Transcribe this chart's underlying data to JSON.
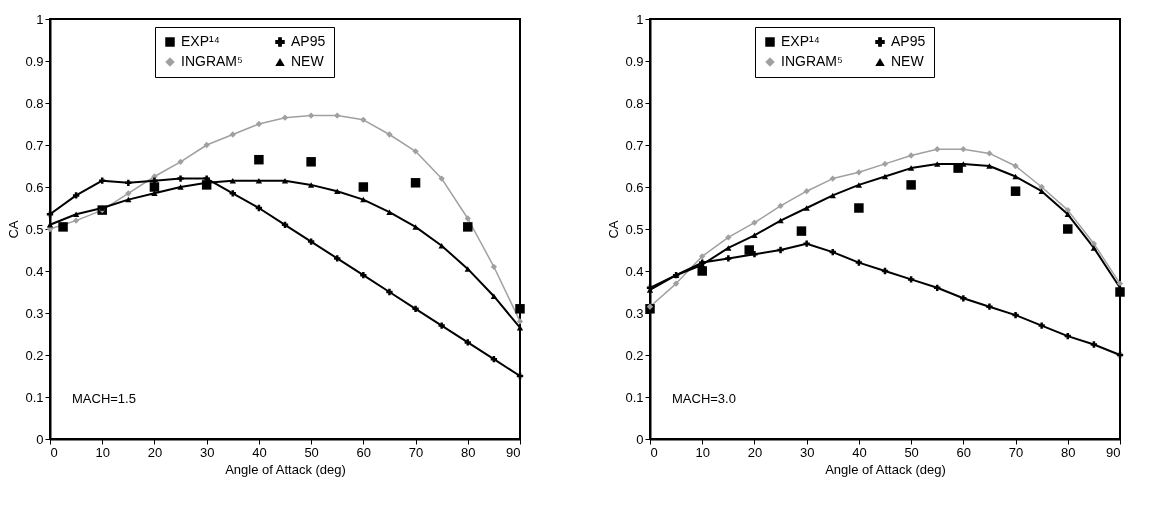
{
  "chart_data": [
    {
      "type": "line",
      "xlabel": "Angle of Attack (deg)",
      "ylabel": "CA",
      "annotations": [
        "MACH=1.5"
      ],
      "xlim": [
        0,
        90
      ],
      "ylim": [
        0,
        1
      ],
      "xticks": [
        0,
        10,
        20,
        30,
        40,
        50,
        60,
        70,
        80,
        90
      ],
      "yticks": [
        0,
        0.1,
        0.2,
        0.3,
        0.4,
        0.5,
        0.6,
        0.7,
        0.8,
        0.9,
        1
      ],
      "legend": "top",
      "x": [
        0,
        5,
        10,
        15,
        20,
        25,
        30,
        35,
        40,
        45,
        50,
        55,
        60,
        65,
        70,
        75,
        80,
        85,
        90
      ],
      "series": [
        {
          "name": "EXP¹⁴",
          "type": "scatter",
          "marker": "square",
          "color": "#000000",
          "x": [
            2.5,
            10,
            20,
            30,
            40,
            50,
            60,
            70,
            80,
            90
          ],
          "values": [
            0.505,
            0.545,
            0.6,
            0.605,
            0.665,
            0.66,
            0.6,
            0.61,
            0.505,
            0.31
          ]
        },
        {
          "name": "INGRAM⁵",
          "type": "line",
          "marker": "diamond",
          "color": "#a0a0a0",
          "values": [
            0.5,
            0.52,
            0.545,
            0.585,
            0.625,
            0.66,
            0.7,
            0.725,
            0.75,
            0.765,
            0.77,
            0.77,
            0.76,
            0.725,
            0.685,
            0.62,
            0.525,
            0.41,
            0.28
          ]
        },
        {
          "name": "AP95",
          "type": "line",
          "marker": "cross",
          "color": "#000000",
          "values": [
            0.535,
            0.58,
            0.615,
            0.61,
            0.615,
            0.62,
            0.62,
            0.585,
            0.55,
            0.51,
            0.47,
            0.43,
            0.39,
            0.35,
            0.31,
            0.27,
            0.23,
            0.19,
            0.15
          ]
        },
        {
          "name": "NEW",
          "type": "line",
          "marker": "triangle",
          "color": "#000000",
          "values": [
            0.51,
            0.535,
            0.55,
            0.57,
            0.585,
            0.6,
            0.61,
            0.615,
            0.615,
            0.615,
            0.605,
            0.59,
            0.57,
            0.54,
            0.505,
            0.46,
            0.405,
            0.34,
            0.265
          ]
        }
      ]
    },
    {
      "type": "line",
      "xlabel": "Angle of Attack (deg)",
      "ylabel": "CA",
      "annotations": [
        "MACH=3.0"
      ],
      "xlim": [
        0,
        90
      ],
      "ylim": [
        0,
        1
      ],
      "xticks": [
        0,
        10,
        20,
        30,
        40,
        50,
        60,
        70,
        80,
        90
      ],
      "yticks": [
        0,
        0.1,
        0.2,
        0.3,
        0.4,
        0.5,
        0.6,
        0.7,
        0.8,
        0.9,
        1
      ],
      "legend": "top",
      "x": [
        0,
        5,
        10,
        15,
        20,
        25,
        30,
        35,
        40,
        45,
        50,
        55,
        60,
        65,
        70,
        75,
        80,
        85,
        90
      ],
      "series": [
        {
          "name": "EXP¹⁴",
          "type": "scatter",
          "marker": "square",
          "color": "#000000",
          "x": [
            0,
            10,
            19,
            29,
            40,
            50,
            59,
            70,
            80,
            90
          ],
          "values": [
            0.31,
            0.4,
            0.45,
            0.495,
            0.55,
            0.605,
            0.645,
            0.59,
            0.5,
            0.35
          ]
        },
        {
          "name": "INGRAM⁵",
          "type": "line",
          "marker": "diamond",
          "color": "#a0a0a0",
          "values": [
            0.315,
            0.37,
            0.435,
            0.48,
            0.515,
            0.555,
            0.59,
            0.62,
            0.635,
            0.655,
            0.675,
            0.69,
            0.69,
            0.68,
            0.65,
            0.6,
            0.545,
            0.465,
            0.37
          ]
        },
        {
          "name": "AP95",
          "type": "line",
          "marker": "cross",
          "color": "#000000",
          "values": [
            0.36,
            0.39,
            0.42,
            0.43,
            0.44,
            0.45,
            0.465,
            0.445,
            0.42,
            0.4,
            0.38,
            0.36,
            0.335,
            0.315,
            0.295,
            0.27,
            0.245,
            0.225,
            0.2
          ]
        },
        {
          "name": "NEW",
          "type": "line",
          "marker": "triangle",
          "color": "#000000",
          "values": [
            0.355,
            0.39,
            0.415,
            0.455,
            0.485,
            0.52,
            0.55,
            0.58,
            0.605,
            0.625,
            0.645,
            0.655,
            0.655,
            0.65,
            0.625,
            0.59,
            0.535,
            0.455,
            0.36
          ]
        }
      ]
    }
  ]
}
